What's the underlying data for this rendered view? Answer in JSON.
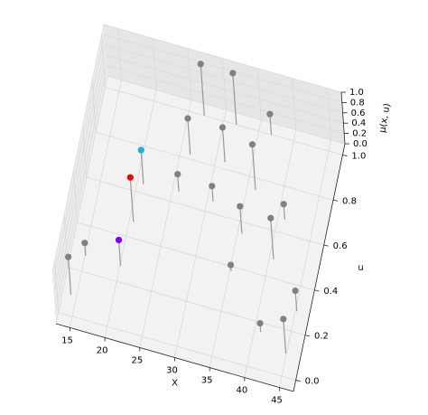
{
  "chart_data": {
    "type": "stem3d",
    "xlabel": "X",
    "ylabel": "u",
    "zlabel": "μ(x, u)",
    "x": [
      14.2,
      15.1,
      20.1,
      20.6,
      20.9,
      25.9,
      26.4,
      27.2,
      31.8,
      31.3,
      30.8,
      36.8,
      36.2,
      35.6,
      41,
      40.6,
      35.2,
      45.2,
      40.9,
      44.9
    ],
    "y": [
      0.09,
      0.27,
      0.27,
      0.47,
      0.64,
      0.65,
      0.82,
      1.0,
      1.0,
      0.83,
      0.65,
      1.0,
      0.75,
      0.55,
      0.66,
      0.48,
      0.38,
      0.29,
      0.16,
      0.1
    ],
    "z": [
      0.73,
      0.25,
      0.5,
      0.86,
      0.66,
      0.34,
      0.7,
      1.0,
      1.0,
      0.67,
      0.3,
      0.4,
      0.88,
      0.53,
      0.3,
      0.8,
      0.12,
      0.4,
      0.17,
      0.67
    ],
    "colors": [
      "#808080",
      "#808080",
      "#7f00ff",
      "#ff0000",
      "#1ab2d6",
      "#808080",
      "#808080",
      "#808080",
      "#808080",
      "#808080",
      "#808080",
      "#808080",
      "#808080",
      "#808080",
      "#808080",
      "#808080",
      "#808080",
      "#808080",
      "#808080",
      "#808080"
    ],
    "xlim": [
      13,
      47
    ],
    "xticks": [
      15,
      20,
      25,
      30,
      35,
      40,
      45
    ],
    "ylim": [
      -0.05,
      1.05
    ],
    "yticks": [
      {
        "value": 0,
        "label": "0.0"
      },
      0.2,
      0.4,
      0.6,
      0.8,
      {
        "value": 1,
        "label": "1.0"
      }
    ],
    "zlim": [
      0,
      1
    ],
    "zticks": [
      {
        "value": 0,
        "label": "0.0"
      },
      0.2,
      0.4,
      0.6,
      0.8,
      {
        "value": 1,
        "label": "1.0"
      }
    ],
    "grid": true
  }
}
